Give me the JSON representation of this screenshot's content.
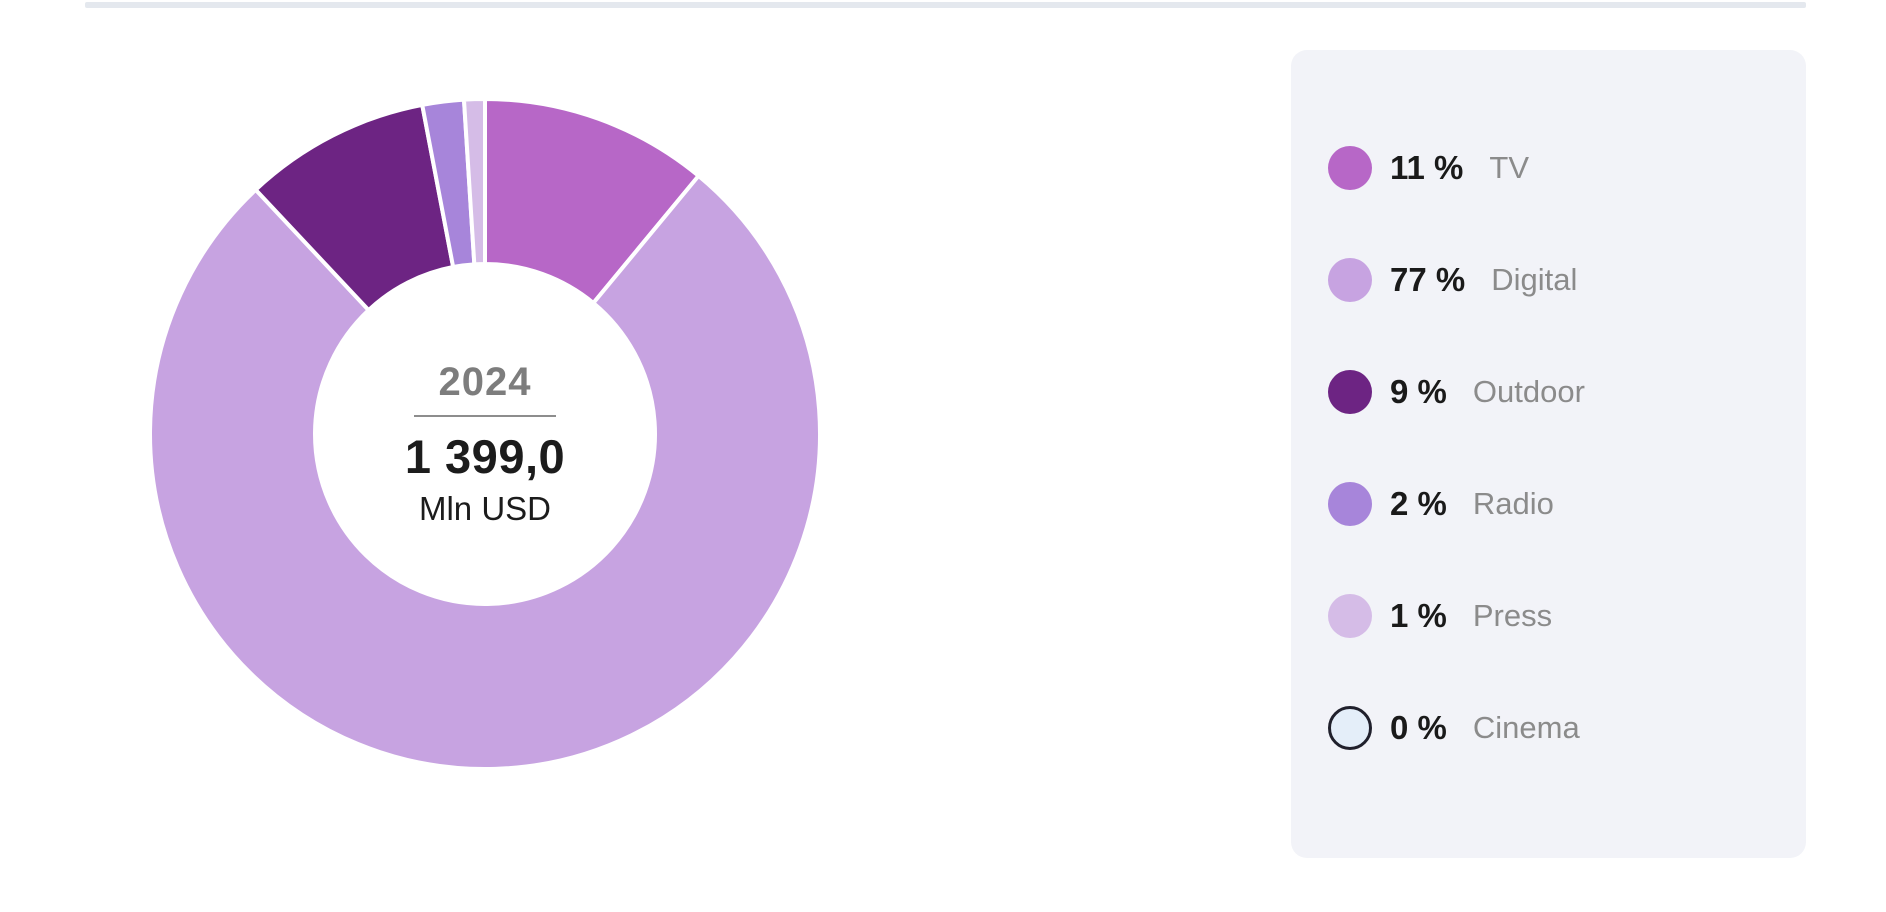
{
  "top_divider": {
    "color": "#e4e8ee"
  },
  "chart_data": {
    "type": "pie",
    "subtype": "donut",
    "title": "",
    "legend_position": "right",
    "center_label": {
      "year": "2024",
      "value": "1 399,0",
      "unit": "Mln USD"
    },
    "total": {
      "value": 1399.0,
      "unit": "Mln USD"
    },
    "start_angle_deg": 0,
    "direction": "clockwise",
    "series": [
      {
        "name": "TV",
        "percent": 11,
        "percent_label": "11 %",
        "color": "#b767c7"
      },
      {
        "name": "Digital",
        "percent": 77,
        "percent_label": "77 %",
        "color": "#c7a3e1"
      },
      {
        "name": "Outdoor",
        "percent": 9,
        "percent_label": "9 %",
        "color": "#6d2483"
      },
      {
        "name": "Radio",
        "percent": 2,
        "percent_label": "2 %",
        "color": "#a785da"
      },
      {
        "name": "Press",
        "percent": 1,
        "percent_label": "1 %",
        "color": "#d5bce7"
      },
      {
        "name": "Cinema",
        "percent": 0,
        "percent_label": "0 %",
        "color": "#e4eef9",
        "swatch_border": "#20202c"
      }
    ]
  },
  "colors": {
    "legend_panel_bg": "#f2f3f8",
    "percent_text": "#1a1a1a",
    "label_text": "#8b8b8b",
    "center_year": "#7d7d7d",
    "center_value": "#1c1c1c",
    "slice_gap": "#ffffff"
  }
}
